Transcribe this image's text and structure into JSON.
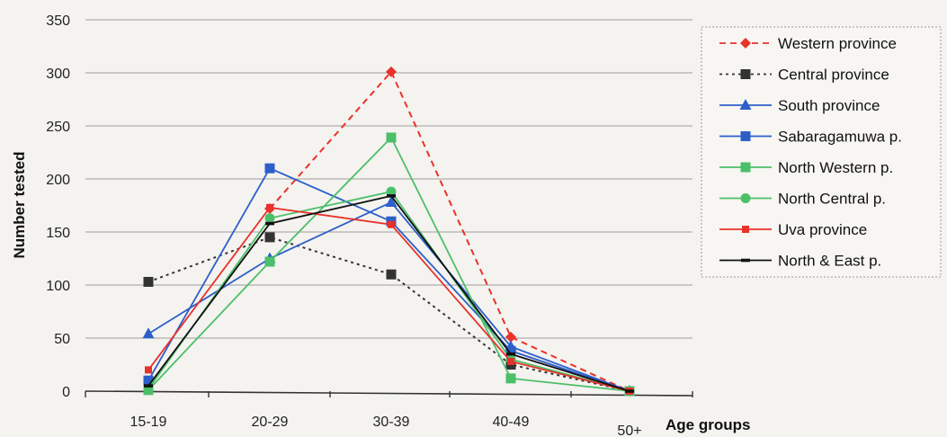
{
  "chart_data": {
    "type": "line",
    "title": "",
    "xlabel": "Age groups",
    "ylabel": "Number tested",
    "categories": [
      "15-19",
      "20-29",
      "30-39",
      "40-49",
      "50+"
    ],
    "ylim": [
      0,
      350
    ],
    "yticks": [
      0,
      50,
      100,
      150,
      200,
      250,
      300,
      350
    ],
    "grid": true,
    "legend_position": "right",
    "series": [
      {
        "name": "Western province",
        "values": [
          null,
          172,
          301,
          51,
          0
        ],
        "color": "#e8322b",
        "marker": "diamond",
        "dash": "dashed"
      },
      {
        "name": "Central province",
        "values": [
          103,
          145,
          110,
          25,
          0
        ],
        "color": "#333333",
        "marker": "square",
        "dash": "dotted"
      },
      {
        "name": "South province",
        "values": [
          54,
          125,
          178,
          42,
          0
        ],
        "color": "#2d5fc9",
        "marker": "triangle",
        "dash": "solid"
      },
      {
        "name": "Sabaragamuwa p.",
        "values": [
          10,
          210,
          160,
          38,
          0
        ],
        "color": "#2d5fc9",
        "marker": "square",
        "dash": "solid"
      },
      {
        "name": "North Western p.",
        "values": [
          1,
          122,
          239,
          12,
          0
        ],
        "color": "#4cbf69",
        "marker": "square",
        "dash": "solid"
      },
      {
        "name": "North Central p.",
        "values": [
          2,
          163,
          188,
          30,
          0
        ],
        "color": "#4cbf69",
        "marker": "circle",
        "dash": "solid"
      },
      {
        "name": "Uva province",
        "values": [
          20,
          173,
          157,
          28,
          0
        ],
        "color": "#e8322b",
        "marker": "smallsquare",
        "dash": "solid"
      },
      {
        "name": "North & East p.",
        "values": [
          5,
          158,
          184,
          35,
          0
        ],
        "color": "#111111",
        "marker": "dash",
        "dash": "solid"
      }
    ]
  }
}
